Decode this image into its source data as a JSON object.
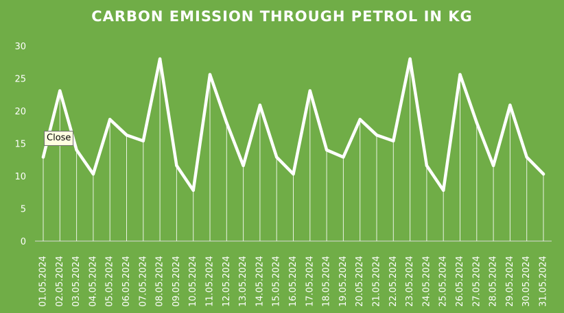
{
  "chart_data": {
    "type": "line",
    "title": "CARBON EMISSION THROUGH PETROL IN KG",
    "xlabel": "",
    "ylabel": "",
    "ylim": [
      0,
      30
    ],
    "yticks": [
      0,
      5,
      10,
      15,
      20,
      25,
      30
    ],
    "grid": false,
    "drop_lines": true,
    "legend": "none",
    "categories": [
      "01.05.2024",
      "02.05.2024",
      "03.05.2024",
      "04.05.2024",
      "05.05.2024",
      "06.05.2024",
      "07.05.2024",
      "08.05.2024",
      "09.05.2024",
      "10.05.2024",
      "11.05.2024",
      "12.05.2024",
      "13.05.2024",
      "14.05.2024",
      "15.05.2024",
      "16.05.2024",
      "17.05.2024",
      "18.05.2024",
      "19.05.2024",
      "20.05.2024",
      "21.05.2024",
      "22.05.2024",
      "23.05.2024",
      "24.05.2024",
      "25.05.2024",
      "26.05.2024",
      "27.05.2024",
      "28.05.2024",
      "29.05.2024",
      "30.05.2024",
      "31.05.2024"
    ],
    "values": [
      12.9,
      23.1,
      14.0,
      10.3,
      18.7,
      16.3,
      15.4,
      28.0,
      11.6,
      7.8,
      25.6,
      18.2,
      11.6,
      20.9,
      12.9,
      10.3,
      23.1,
      14.0,
      12.9,
      18.7,
      16.3,
      15.4,
      28.0,
      11.6,
      7.8,
      25.6,
      18.2,
      11.6,
      20.9,
      12.9,
      10.3
    ],
    "colors": {
      "background": "#70ad47",
      "line": "#ffffff",
      "text": "#ffffff"
    }
  },
  "tooltip": {
    "text": "Close"
  }
}
